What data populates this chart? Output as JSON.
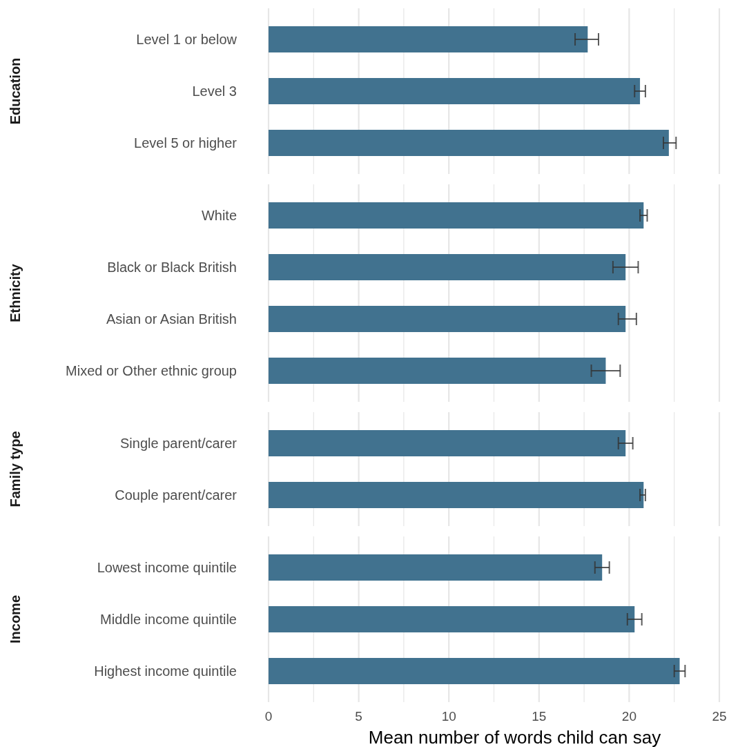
{
  "chart_data": [
    {
      "type": "bar",
      "orientation": "horizontal",
      "ylabel": "Education",
      "categories": [
        "Level 1 or below",
        "Level 3",
        "Level 5 or higher"
      ],
      "values": [
        17.7,
        20.6,
        22.2
      ],
      "errors": [
        [
          17.0,
          18.3
        ],
        [
          20.3,
          20.9
        ],
        [
          21.9,
          22.6
        ]
      ],
      "color": "#41728f",
      "xlim": [
        0,
        25
      ],
      "xticks": [
        0,
        {
          "value": 2.5,
          "label": null
        },
        5,
        {
          "value": 7.5,
          "label": null
        },
        10,
        {
          "value": 12.5,
          "label": null
        },
        15,
        {
          "value": 17.5,
          "label": null
        },
        20,
        {
          "value": 22.5,
          "label": null
        },
        25
      ],
      "grid": "x",
      "tick_labels": "y"
    },
    {
      "type": "bar",
      "orientation": "horizontal",
      "ylabel": "Ethnicity",
      "categories": [
        "White",
        "Black or Black British",
        "Asian or Asian British",
        "Mixed or Other ethnic group"
      ],
      "values": [
        20.8,
        19.8,
        19.8,
        18.7
      ],
      "errors": [
        [
          20.6,
          21.0
        ],
        [
          19.1,
          20.5
        ],
        [
          19.4,
          20.4
        ],
        [
          17.9,
          19.5
        ]
      ],
      "color": "#41728f",
      "xlim": [
        0,
        25
      ],
      "xticks": [
        0,
        {
          "value": 2.5,
          "label": null
        },
        5,
        {
          "value": 7.5,
          "label": null
        },
        10,
        {
          "value": 12.5,
          "label": null
        },
        15,
        {
          "value": 17.5,
          "label": null
        },
        20,
        {
          "value": 22.5,
          "label": null
        },
        25
      ],
      "grid": "x",
      "tick_labels": "y"
    },
    {
      "type": "bar",
      "orientation": "horizontal",
      "ylabel": "Family type",
      "categories": [
        "Single parent/carer",
        "Couple parent/carer"
      ],
      "values": [
        19.8,
        20.8
      ],
      "errors": [
        [
          19.4,
          20.2
        ],
        [
          20.6,
          20.9
        ]
      ],
      "color": "#41728f",
      "xlim": [
        0,
        25
      ],
      "xticks": [
        0,
        {
          "value": 2.5,
          "label": null
        },
        5,
        {
          "value": 7.5,
          "label": null
        },
        10,
        {
          "value": 12.5,
          "label": null
        },
        15,
        {
          "value": 17.5,
          "label": null
        },
        20,
        {
          "value": 22.5,
          "label": null
        },
        25
      ],
      "grid": "x",
      "tick_labels": "y"
    },
    {
      "type": "bar",
      "orientation": "horizontal",
      "ylabel": "Income",
      "xlabel": "Mean number of words child can say",
      "categories": [
        "Lowest income quintile",
        "Middle income quintile",
        "Highest income quintile"
      ],
      "values": [
        18.5,
        20.3,
        22.8
      ],
      "errors": [
        [
          18.1,
          18.9
        ],
        [
          19.9,
          20.7
        ],
        [
          22.5,
          23.1
        ]
      ],
      "color": "#41728f",
      "xlim": [
        0,
        25
      ],
      "xticks": [
        0,
        {
          "value": 2.5,
          "label": null
        },
        5,
        {
          "value": 7.5,
          "label": null
        },
        10,
        {
          "value": 12.5,
          "label": null
        },
        15,
        {
          "value": 17.5,
          "label": null
        },
        20,
        {
          "value": 22.5,
          "label": null
        },
        25
      ],
      "grid": "x"
    }
  ]
}
